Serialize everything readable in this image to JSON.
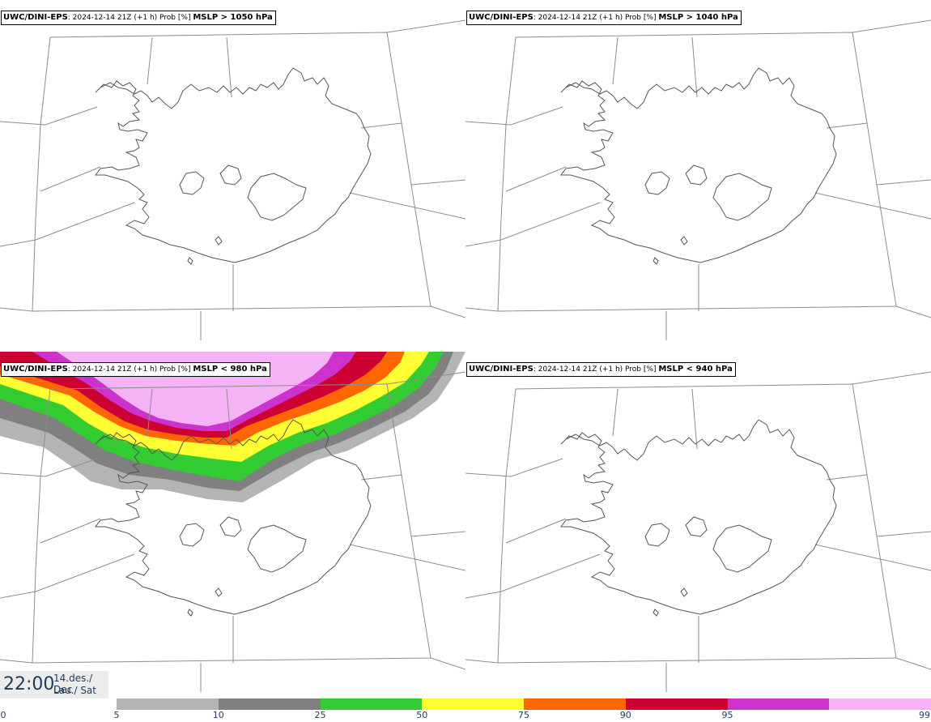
{
  "panels": [
    {
      "model": "UWC/DINI-EPS",
      "run": "2024-12-14 21Z (+1 h) Prob [%]",
      "param": "MSLP > 1050 hPa"
    },
    {
      "model": "UWC/DINI-EPS",
      "run": "2024-12-14 21Z (+1 h) Prob [%]",
      "param": "MSLP > 1040 hPa"
    },
    {
      "model": "UWC/DINI-EPS",
      "run": "2024-12-14 21Z (+1 h) Prob [%]",
      "param": "MSLP < 980 hPa"
    },
    {
      "model": "UWC/DINI-EPS",
      "run": "2024-12-14 21Z (+1 h) Prob [%]",
      "param": "MSLP < 940 hPa"
    }
  ],
  "time_box": {
    "time": "22:00",
    "date": "14.des./ Dec",
    "day": "Lau./ Sat"
  },
  "colorbar": {
    "ticks": [
      "0",
      "5",
      "10",
      "25",
      "50",
      "75",
      "90",
      "95",
      "99"
    ],
    "colors": [
      "#b4b4b4",
      "#808080",
      "#33cc33",
      "#ffff33",
      "#ff6600",
      "#cc0033",
      "#cc33cc",
      "#f5b3f5"
    ]
  }
}
